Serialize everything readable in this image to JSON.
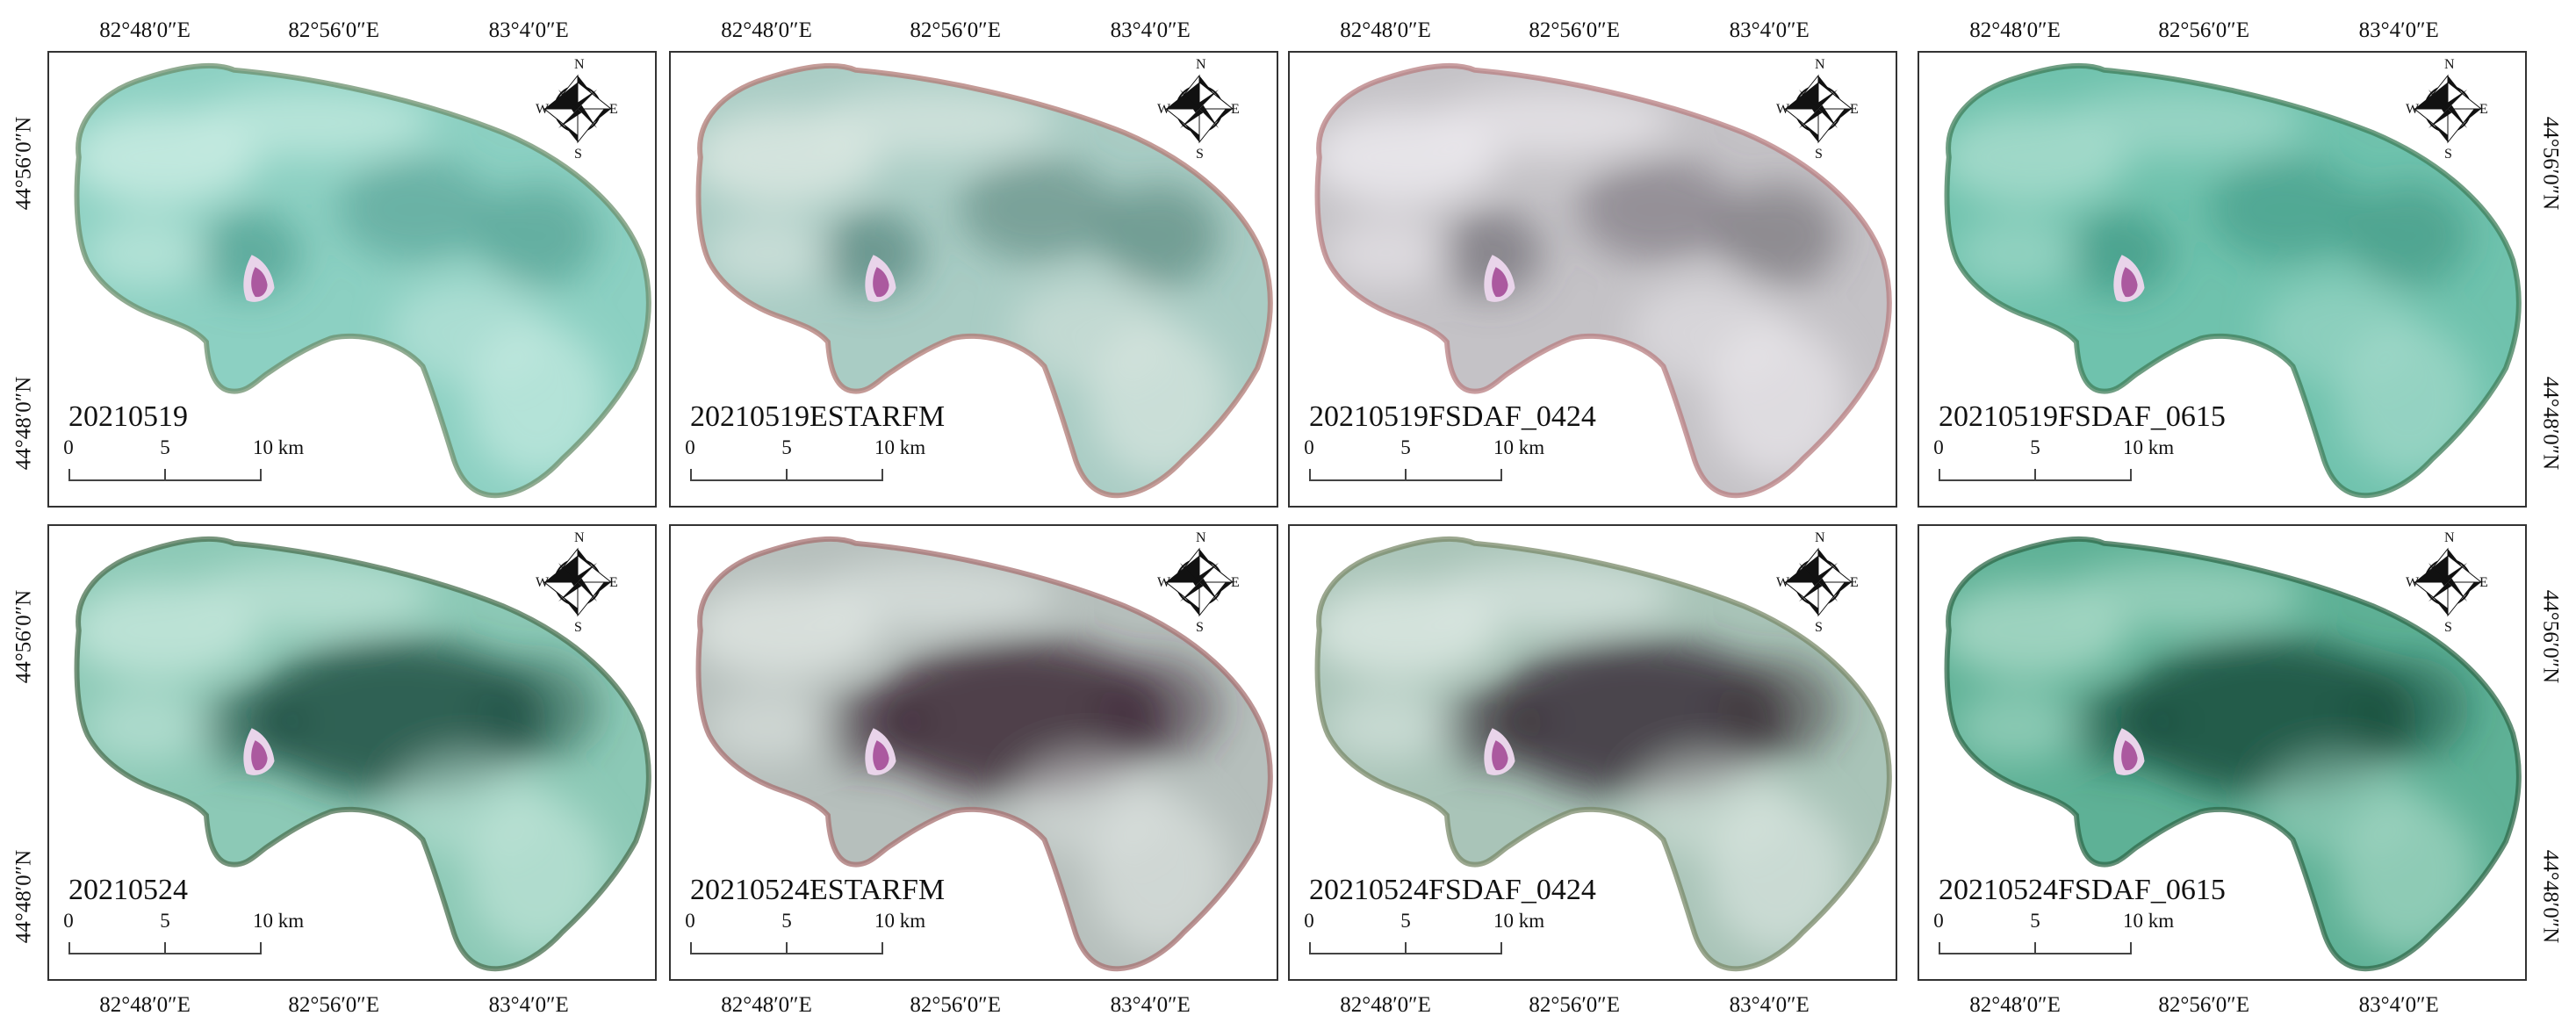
{
  "lon_ticks": [
    "82°48′0″E",
    "82°56′0″E",
    "83°4′0″E"
  ],
  "lat_ticks": [
    "44°56′0″N",
    "44°48′0″N"
  ],
  "scale": {
    "labels": [
      "0",
      "5",
      "10 km"
    ]
  },
  "compass": {
    "n": "N",
    "s": "S",
    "e": "E",
    "w": "W"
  },
  "panels": [
    {
      "label": "20210519"
    },
    {
      "label": "20210519ESTARFM"
    },
    {
      "label": "20210519FSDAF_0424"
    },
    {
      "label": "20210519FSDAF_0615"
    },
    {
      "label": "20210524"
    },
    {
      "label": "20210524ESTARFM"
    },
    {
      "label": "20210524FSDAF_0424"
    },
    {
      "label": "20210524FSDAF_0615"
    }
  ],
  "palettes": [
    {
      "base": "#8cd0c2",
      "dark": "#3d8f82",
      "light": "#c9ece3",
      "edge": "#6b8f6c"
    },
    {
      "base": "#a9ccc4",
      "dark": "#3d6f66",
      "light": "#dbe8e2",
      "edge": "#b07a74"
    },
    {
      "base": "#c4c2c6",
      "dark": "#5a555e",
      "light": "#eceaee",
      "edge": "#b77d80"
    },
    {
      "base": "#6fc2ad",
      "dark": "#2f8a76",
      "light": "#a7dccd",
      "edge": "#3f7e5a"
    },
    {
      "base": "#8cc9b6",
      "dark": "#1f4f42",
      "light": "#c3e6da",
      "edge": "#4a7050"
    },
    {
      "base": "#b6bfbc",
      "dark": "#3d2a36",
      "light": "#dde4e1",
      "edge": "#a57070"
    },
    {
      "base": "#a9c4b8",
      "dark": "#3b3038",
      "light": "#dbe7e2",
      "edge": "#7a8a6a"
    },
    {
      "base": "#5eb196",
      "dark": "#154c3c",
      "light": "#a7d8c6",
      "edge": "#2f6a4a"
    }
  ]
}
